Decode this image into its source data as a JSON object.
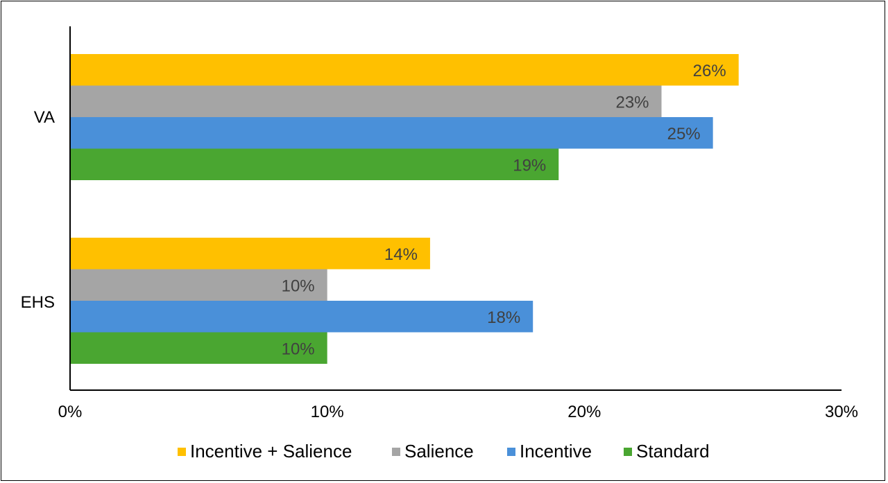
{
  "chart_data": {
    "type": "bar",
    "orientation": "horizontal",
    "categories": [
      "VA",
      "EHS"
    ],
    "series": [
      {
        "name": "Incentive + Salience",
        "values": [
          26,
          14
        ],
        "labels": [
          "26%",
          "14%"
        ],
        "color": "#FFC000"
      },
      {
        "name": "Salience",
        "values": [
          23,
          10
        ],
        "labels": [
          "23%",
          "10%"
        ],
        "color": "#A5A5A5"
      },
      {
        "name": "Incentive",
        "values": [
          25,
          18
        ],
        "labels": [
          "25%",
          "18%"
        ],
        "color": "#4A90D9"
      },
      {
        "name": "Standard",
        "values": [
          19,
          10
        ],
        "labels": [
          "19%",
          "10%"
        ],
        "color": "#4AA631"
      }
    ],
    "xlim": [
      0,
      30
    ],
    "xticks": [
      0,
      10,
      20,
      30
    ],
    "xtick_labels": [
      "0%",
      "10%",
      "20%",
      "30%"
    ],
    "title": "",
    "xlabel": "",
    "ylabel": "",
    "grid": false,
    "legend": "bottom"
  }
}
